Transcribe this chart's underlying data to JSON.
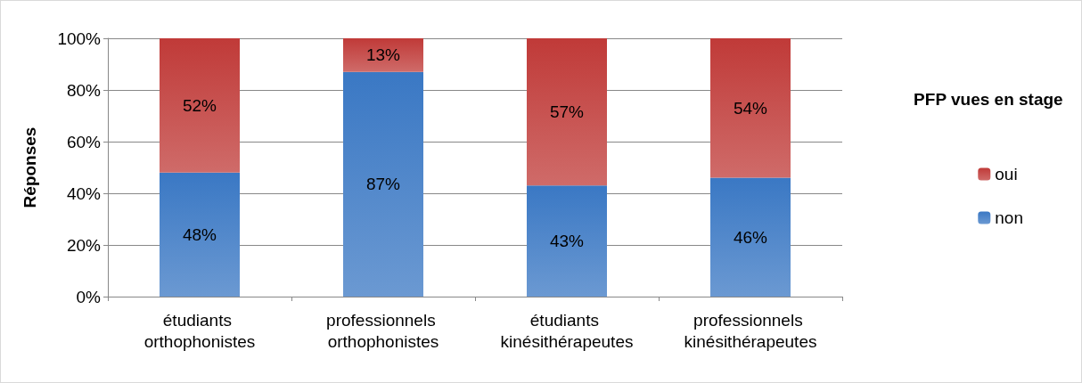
{
  "chart_data": {
    "type": "bar",
    "stacked": true,
    "ylabel": "Réponses",
    "legend_title": "PFP vues en stage",
    "categories": [
      "étudiants orthophonistes",
      "professionnels orthophonistes",
      "étudiants kinésithérapeutes",
      "professionnels kinésithérapeutes"
    ],
    "series": [
      {
        "name": "non",
        "color": "#3a78c4",
        "values": [
          48,
          87,
          43,
          46
        ],
        "value_labels": [
          "48%",
          "87%",
          "43%",
          "46%"
        ]
      },
      {
        "name": "oui",
        "color": "#c03a38",
        "values": [
          52,
          13,
          57,
          54
        ],
        "value_labels": [
          "52%",
          "13%",
          "57%",
          "54%"
        ]
      }
    ],
    "ylim": [
      0,
      100
    ],
    "yticks": [
      {
        "value": 0,
        "label": "0%"
      },
      {
        "value": 20,
        "label": "20%"
      },
      {
        "value": 40,
        "label": "40%"
      },
      {
        "value": 60,
        "label": "60%"
      },
      {
        "value": 80,
        "label": "80%"
      },
      {
        "value": 100,
        "label": "100%"
      }
    ],
    "grid": "y",
    "legend": "right"
  }
}
